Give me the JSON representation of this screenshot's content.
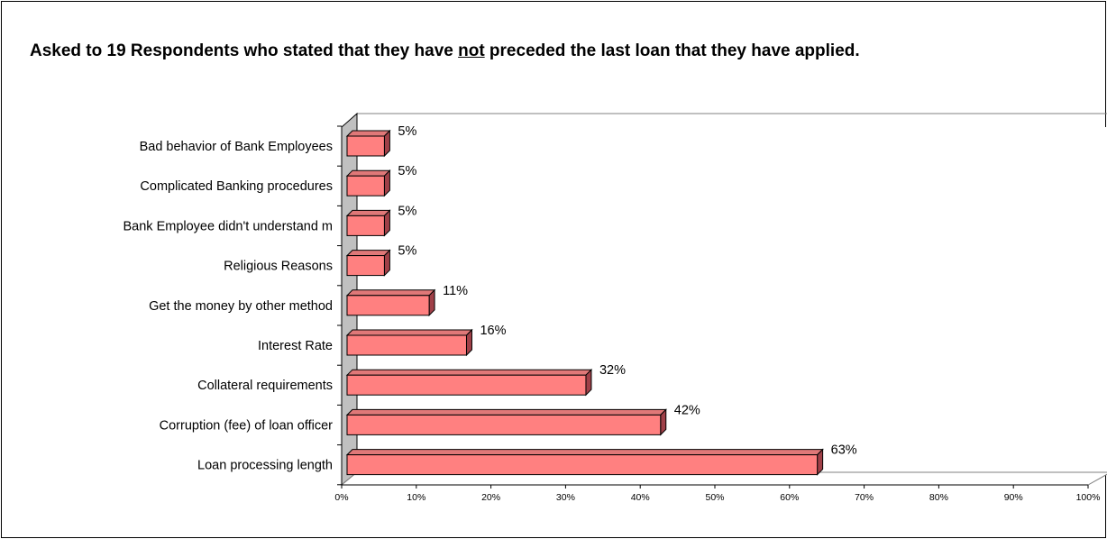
{
  "title": {
    "before": "Asked to 19 Respondents who stated that they have ",
    "emphasis": "not",
    "after": " preceded the last loan that they have applied."
  },
  "chart_data": {
    "type": "bar",
    "orientation": "horizontal",
    "categories": [
      "Bad behavior of Bank Employees",
      "Complicated Banking procedures",
      "Bank Employee didn't understand m",
      "Religious Reasons",
      "Get the money by other method",
      "Interest Rate",
      "Collateral requirements",
      "Corruption (fee) of loan officer",
      "Loan processing length"
    ],
    "values": [
      5,
      5,
      5,
      5,
      11,
      16,
      32,
      42,
      63
    ],
    "data_labels": [
      "5%",
      "5%",
      "5%",
      "5%",
      "11%",
      "16%",
      "32%",
      "42%",
      "63%"
    ],
    "xlim": [
      0,
      100
    ],
    "x_ticks": [
      "0%",
      "10%",
      "20%",
      "30%",
      "40%",
      "50%",
      "60%",
      "70%",
      "80%",
      "90%",
      "100%"
    ],
    "grid": false,
    "legend": "none",
    "bar_color": "#ff8080",
    "bar_top_color": "#e07878",
    "bar_side_color": "#a04048",
    "wall_color": "#c0c0c0"
  }
}
